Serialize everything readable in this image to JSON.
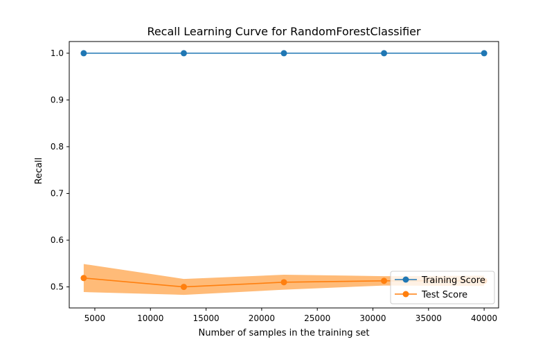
{
  "chart_data": {
    "type": "line",
    "title": "Recall Learning Curve for RandomForestClassifier",
    "xlabel": "Number of samples in the training set",
    "ylabel": "Recall",
    "xlim": [
      2700,
      41300
    ],
    "ylim": [
      0.455,
      1.025
    ],
    "xticks": [
      5000,
      10000,
      15000,
      20000,
      25000,
      30000,
      35000,
      40000
    ],
    "yticks": [
      0.5,
      0.6,
      0.7,
      0.8,
      0.9,
      1.0
    ],
    "x": [
      4000,
      13000,
      22000,
      31000,
      40000
    ],
    "series": [
      {
        "name": "Training Score",
        "color": "#1f77b4",
        "values": [
          1.0,
          1.0,
          1.0,
          1.0,
          1.0
        ],
        "band_lower": [
          1.0,
          1.0,
          1.0,
          1.0,
          1.0
        ],
        "band_upper": [
          1.0,
          1.0,
          1.0,
          1.0,
          1.0
        ]
      },
      {
        "name": "Test Score",
        "color": "#ff7f0e",
        "band_color": "#ffbb78",
        "values": [
          0.519,
          0.5,
          0.51,
          0.513,
          0.513
        ],
        "band_lower": [
          0.489,
          0.483,
          0.494,
          0.503,
          0.502
        ],
        "band_upper": [
          0.549,
          0.517,
          0.526,
          0.523,
          0.524
        ]
      }
    ],
    "grid": false,
    "legend_position": "lower-right"
  }
}
